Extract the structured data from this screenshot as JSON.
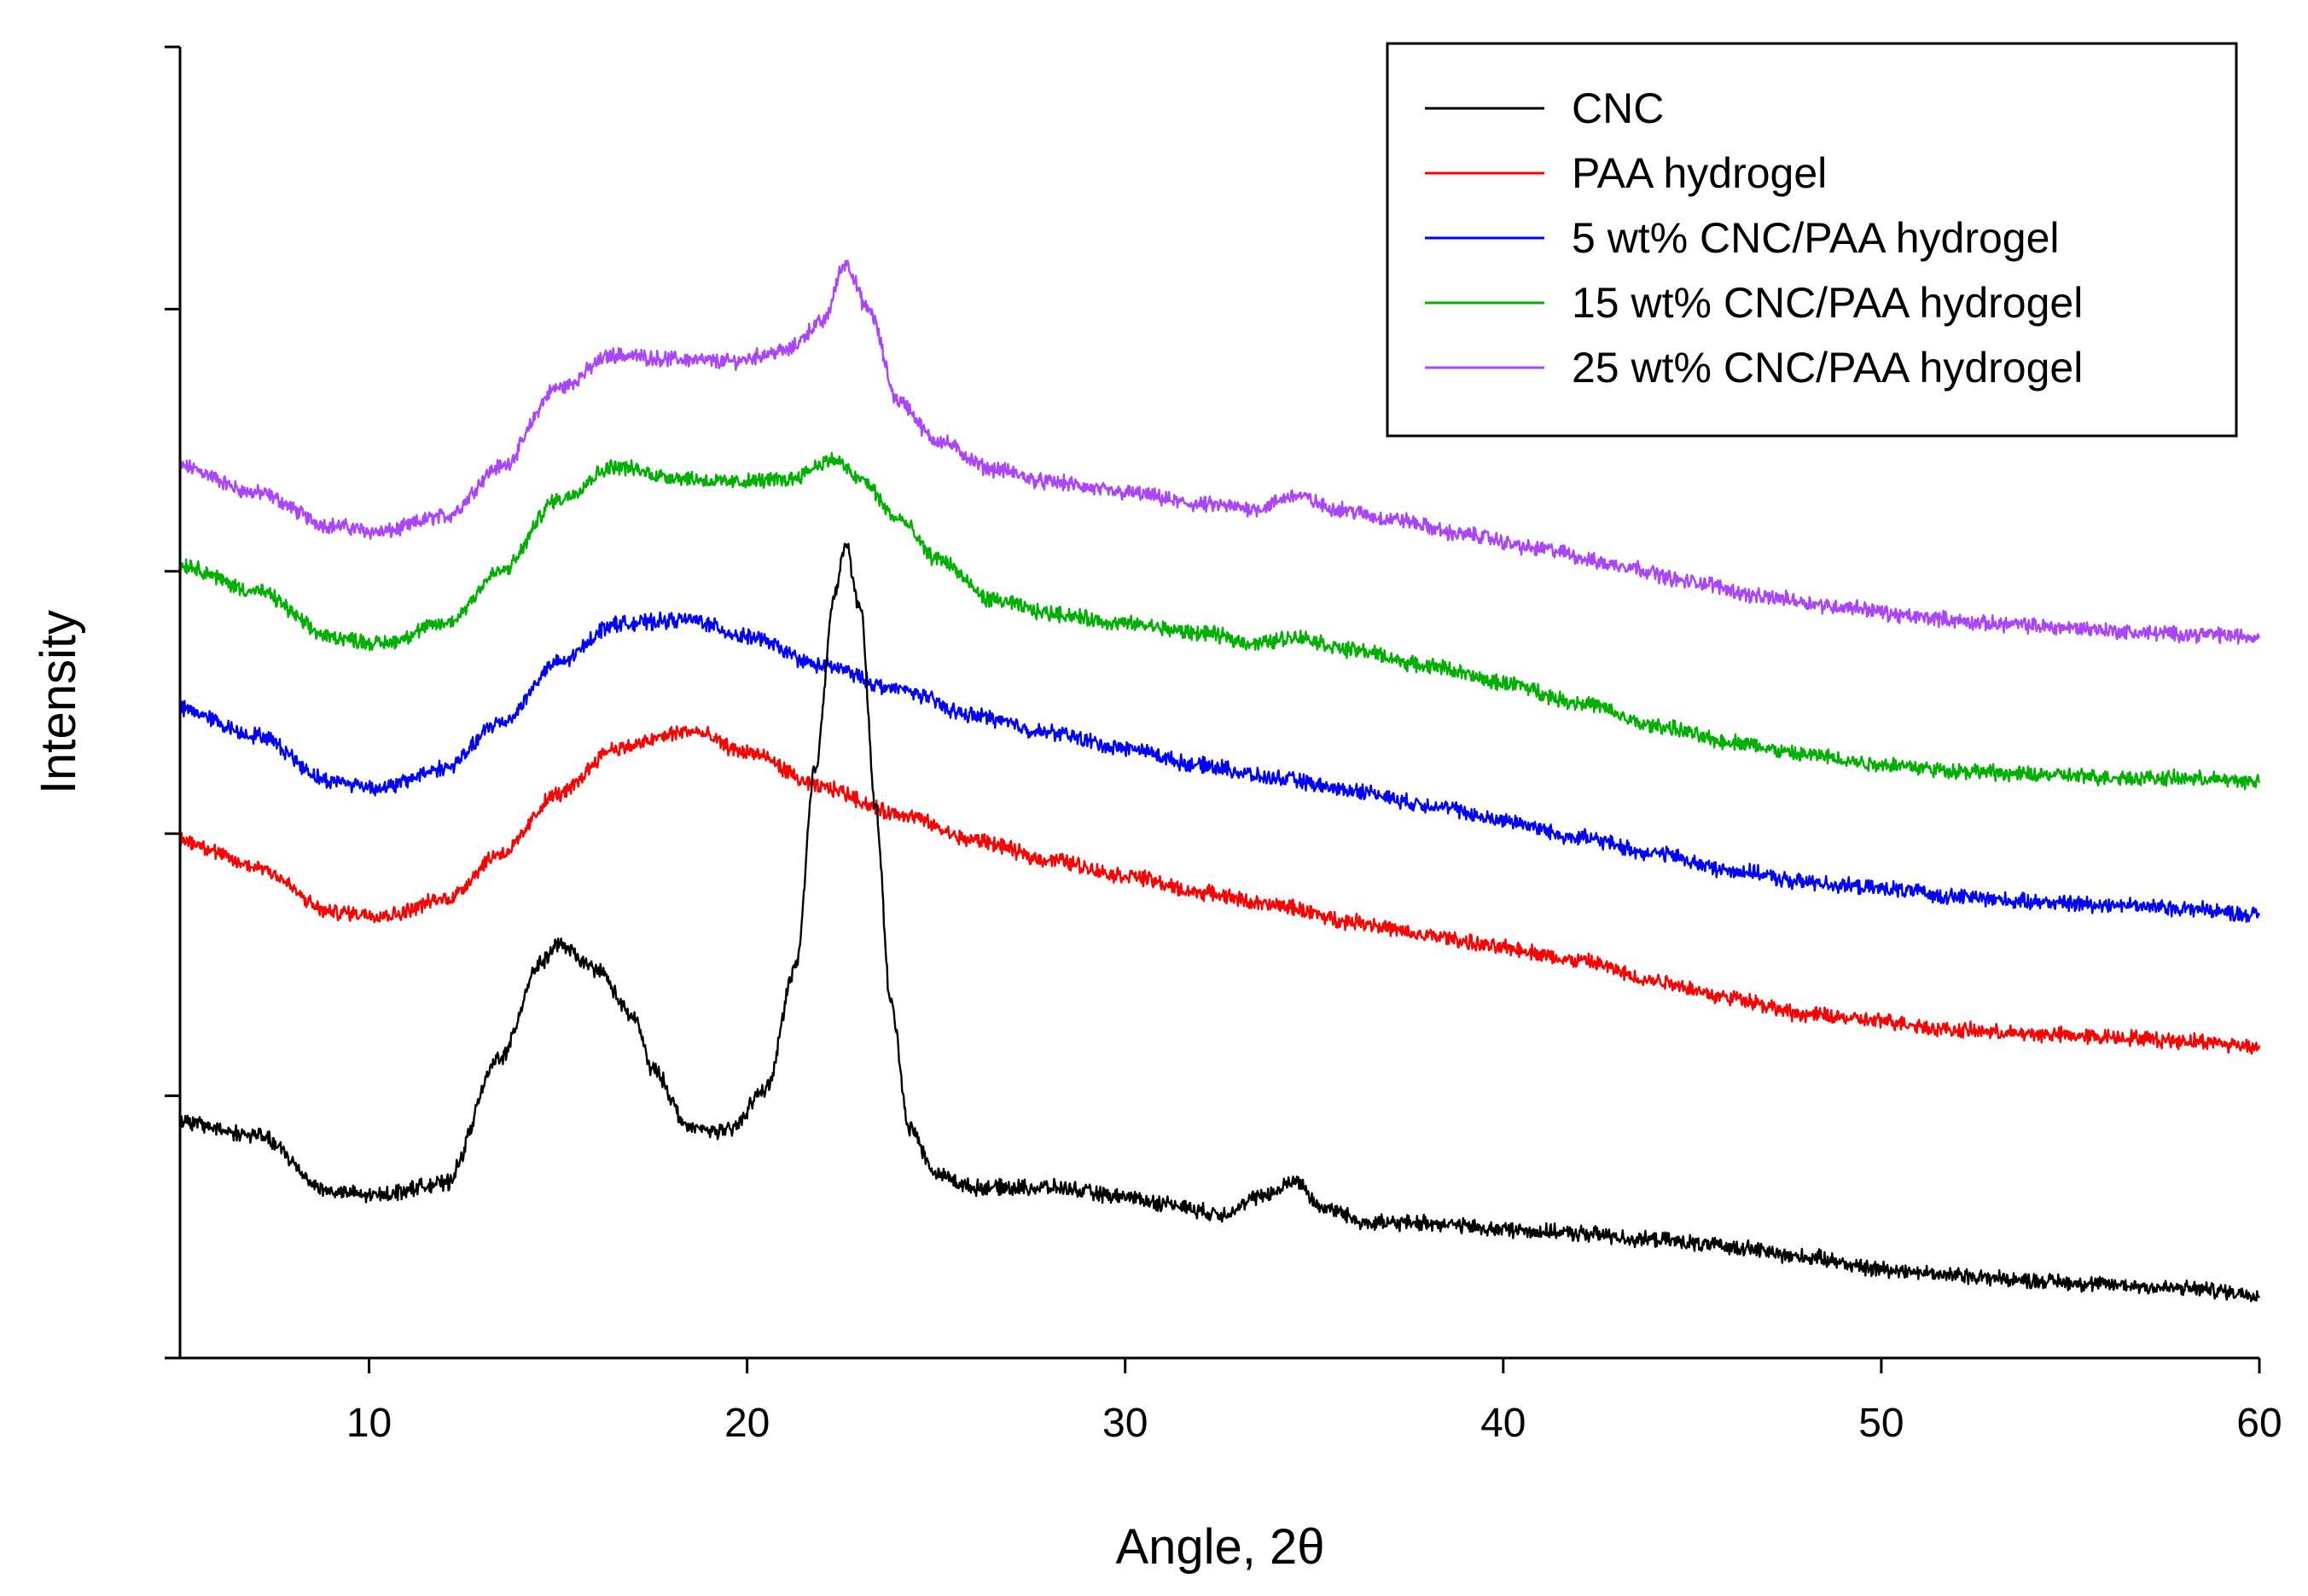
{
  "chart_data": {
    "type": "line",
    "title": "",
    "xlabel": "Angle, 2θ",
    "ylabel": "Intensity",
    "xlim": [
      5,
      60
    ],
    "ylim": [
      0,
      1000
    ],
    "xticks": [
      10,
      20,
      30,
      40,
      50,
      60
    ],
    "xtick_labels": [
      "10",
      "20",
      "30",
      "40",
      "50",
      "60"
    ],
    "yticks": [
      0,
      200,
      400,
      600,
      800,
      1000
    ],
    "ytick_labels_shown": false,
    "grid": false,
    "legend_position": "top-right",
    "series": [
      {
        "name": "CNC",
        "color": "#000000",
        "points": [
          [
            5,
            180
          ],
          [
            7,
            170
          ],
          [
            9,
            127
          ],
          [
            10,
            124
          ],
          [
            12,
            133
          ],
          [
            13.5,
            230
          ],
          [
            14.5,
            300
          ],
          [
            15,
            315
          ],
          [
            16,
            297
          ],
          [
            17,
            260
          ],
          [
            17.5,
            220
          ],
          [
            18.5,
            175
          ],
          [
            19.5,
            173
          ],
          [
            20.5,
            205
          ],
          [
            21.3,
            300
          ],
          [
            21.8,
            450
          ],
          [
            22.3,
            580
          ],
          [
            22.6,
            620
          ],
          [
            23,
            570
          ],
          [
            23.4,
            420
          ],
          [
            23.8,
            270
          ],
          [
            24.3,
            175
          ],
          [
            25,
            140
          ],
          [
            26,
            130
          ],
          [
            28,
            130
          ],
          [
            30,
            123
          ],
          [
            31,
            118
          ],
          [
            32.5,
            110
          ],
          [
            33.8,
            125
          ],
          [
            34.5,
            135
          ],
          [
            35.2,
            115
          ],
          [
            36.5,
            103
          ],
          [
            38,
            103
          ],
          [
            40,
            98
          ],
          [
            42,
            95
          ],
          [
            44,
            90
          ],
          [
            46,
            85
          ],
          [
            48,
            77
          ],
          [
            50,
            68
          ],
          [
            52,
            63
          ],
          [
            54,
            59
          ],
          [
            56,
            56
          ],
          [
            58,
            53
          ],
          [
            60,
            49
          ]
        ]
      },
      {
        "name": "PAA hydrogel",
        "color": "#ff0000",
        "points": [
          [
            5,
            395
          ],
          [
            7,
            375
          ],
          [
            9,
            340
          ],
          [
            10.5,
            338
          ],
          [
            12,
            350
          ],
          [
            13.5,
            385
          ],
          [
            15,
            430
          ],
          [
            16.5,
            465
          ],
          [
            18.5,
            478
          ],
          [
            20,
            462
          ],
          [
            22,
            435
          ],
          [
            24,
            415
          ],
          [
            26,
            395
          ],
          [
            28,
            380
          ],
          [
            30,
            368
          ],
          [
            32,
            355
          ],
          [
            34,
            345
          ],
          [
            36,
            333
          ],
          [
            38,
            322
          ],
          [
            40,
            313
          ],
          [
            42,
            303
          ],
          [
            44,
            288
          ],
          [
            46,
            275
          ],
          [
            48,
            262
          ],
          [
            50,
            257
          ],
          [
            52,
            250
          ],
          [
            54,
            247
          ],
          [
            56,
            245
          ],
          [
            58,
            242
          ],
          [
            60,
            238
          ]
        ]
      },
      {
        "name": "5 wt% CNC/PAA hydrogel",
        "color": "#0000ff",
        "points": [
          [
            5,
            495
          ],
          [
            7,
            475
          ],
          [
            9,
            440
          ],
          [
            10.3,
            435
          ],
          [
            12,
            450
          ],
          [
            13.5,
            485
          ],
          [
            15,
            530
          ],
          [
            16.5,
            560
          ],
          [
            18.5,
            563
          ],
          [
            20,
            550
          ],
          [
            22,
            528
          ],
          [
            24,
            510
          ],
          [
            26,
            490
          ],
          [
            28,
            477
          ],
          [
            30,
            465
          ],
          [
            32,
            452
          ],
          [
            34,
            442
          ],
          [
            36,
            433
          ],
          [
            38,
            422
          ],
          [
            40,
            410
          ],
          [
            42,
            397
          ],
          [
            44,
            385
          ],
          [
            46,
            372
          ],
          [
            48,
            363
          ],
          [
            50,
            358
          ],
          [
            52,
            352
          ],
          [
            54,
            348
          ],
          [
            56,
            346
          ],
          [
            58,
            343
          ],
          [
            60,
            338
          ]
        ]
      },
      {
        "name": "15 wt% CNC/PAA hydrogel",
        "color": "#00b000",
        "points": [
          [
            5,
            605
          ],
          [
            7,
            585
          ],
          [
            9,
            550
          ],
          [
            10.3,
            545
          ],
          [
            12,
            560
          ],
          [
            13.5,
            600
          ],
          [
            15,
            655
          ],
          [
            16.5,
            680
          ],
          [
            18,
            672
          ],
          [
            19.5,
            668
          ],
          [
            21,
            670
          ],
          [
            22.3,
            685
          ],
          [
            23,
            670
          ],
          [
            24,
            640
          ],
          [
            25,
            610
          ],
          [
            26.5,
            578
          ],
          [
            28,
            568
          ],
          [
            30,
            560
          ],
          [
            32,
            553
          ],
          [
            33.5,
            545
          ],
          [
            34.5,
            550
          ],
          [
            36,
            540
          ],
          [
            38,
            528
          ],
          [
            40,
            515
          ],
          [
            42,
            500
          ],
          [
            44,
            482
          ],
          [
            46,
            470
          ],
          [
            48,
            460
          ],
          [
            50,
            453
          ],
          [
            52,
            448
          ],
          [
            54,
            445
          ],
          [
            56,
            443
          ],
          [
            58,
            442
          ],
          [
            60,
            440
          ]
        ]
      },
      {
        "name": "25 wt% CNC/PAA hydrogel",
        "color": "#aa44ff",
        "points": [
          [
            5,
            680
          ],
          [
            7,
            660
          ],
          [
            9,
            635
          ],
          [
            10.3,
            630
          ],
          [
            12,
            642
          ],
          [
            13.5,
            680
          ],
          [
            15,
            740
          ],
          [
            16.5,
            765
          ],
          [
            18,
            762
          ],
          [
            19.5,
            760
          ],
          [
            21,
            768
          ],
          [
            22,
            790
          ],
          [
            22.6,
            835
          ],
          [
            23.2,
            800
          ],
          [
            24,
            730
          ],
          [
            25,
            700
          ],
          [
            26.5,
            678
          ],
          [
            28,
            668
          ],
          [
            30,
            660
          ],
          [
            32,
            651
          ],
          [
            33.5,
            648
          ],
          [
            34.5,
            658
          ],
          [
            35.5,
            648
          ],
          [
            37,
            640
          ],
          [
            39,
            628
          ],
          [
            41,
            617
          ],
          [
            43,
            605
          ],
          [
            45,
            592
          ],
          [
            47,
            580
          ],
          [
            49,
            573
          ],
          [
            51,
            565
          ],
          [
            53,
            560
          ],
          [
            55,
            557
          ],
          [
            57,
            553
          ],
          [
            58.5,
            552
          ],
          [
            60,
            550
          ]
        ]
      }
    ]
  }
}
